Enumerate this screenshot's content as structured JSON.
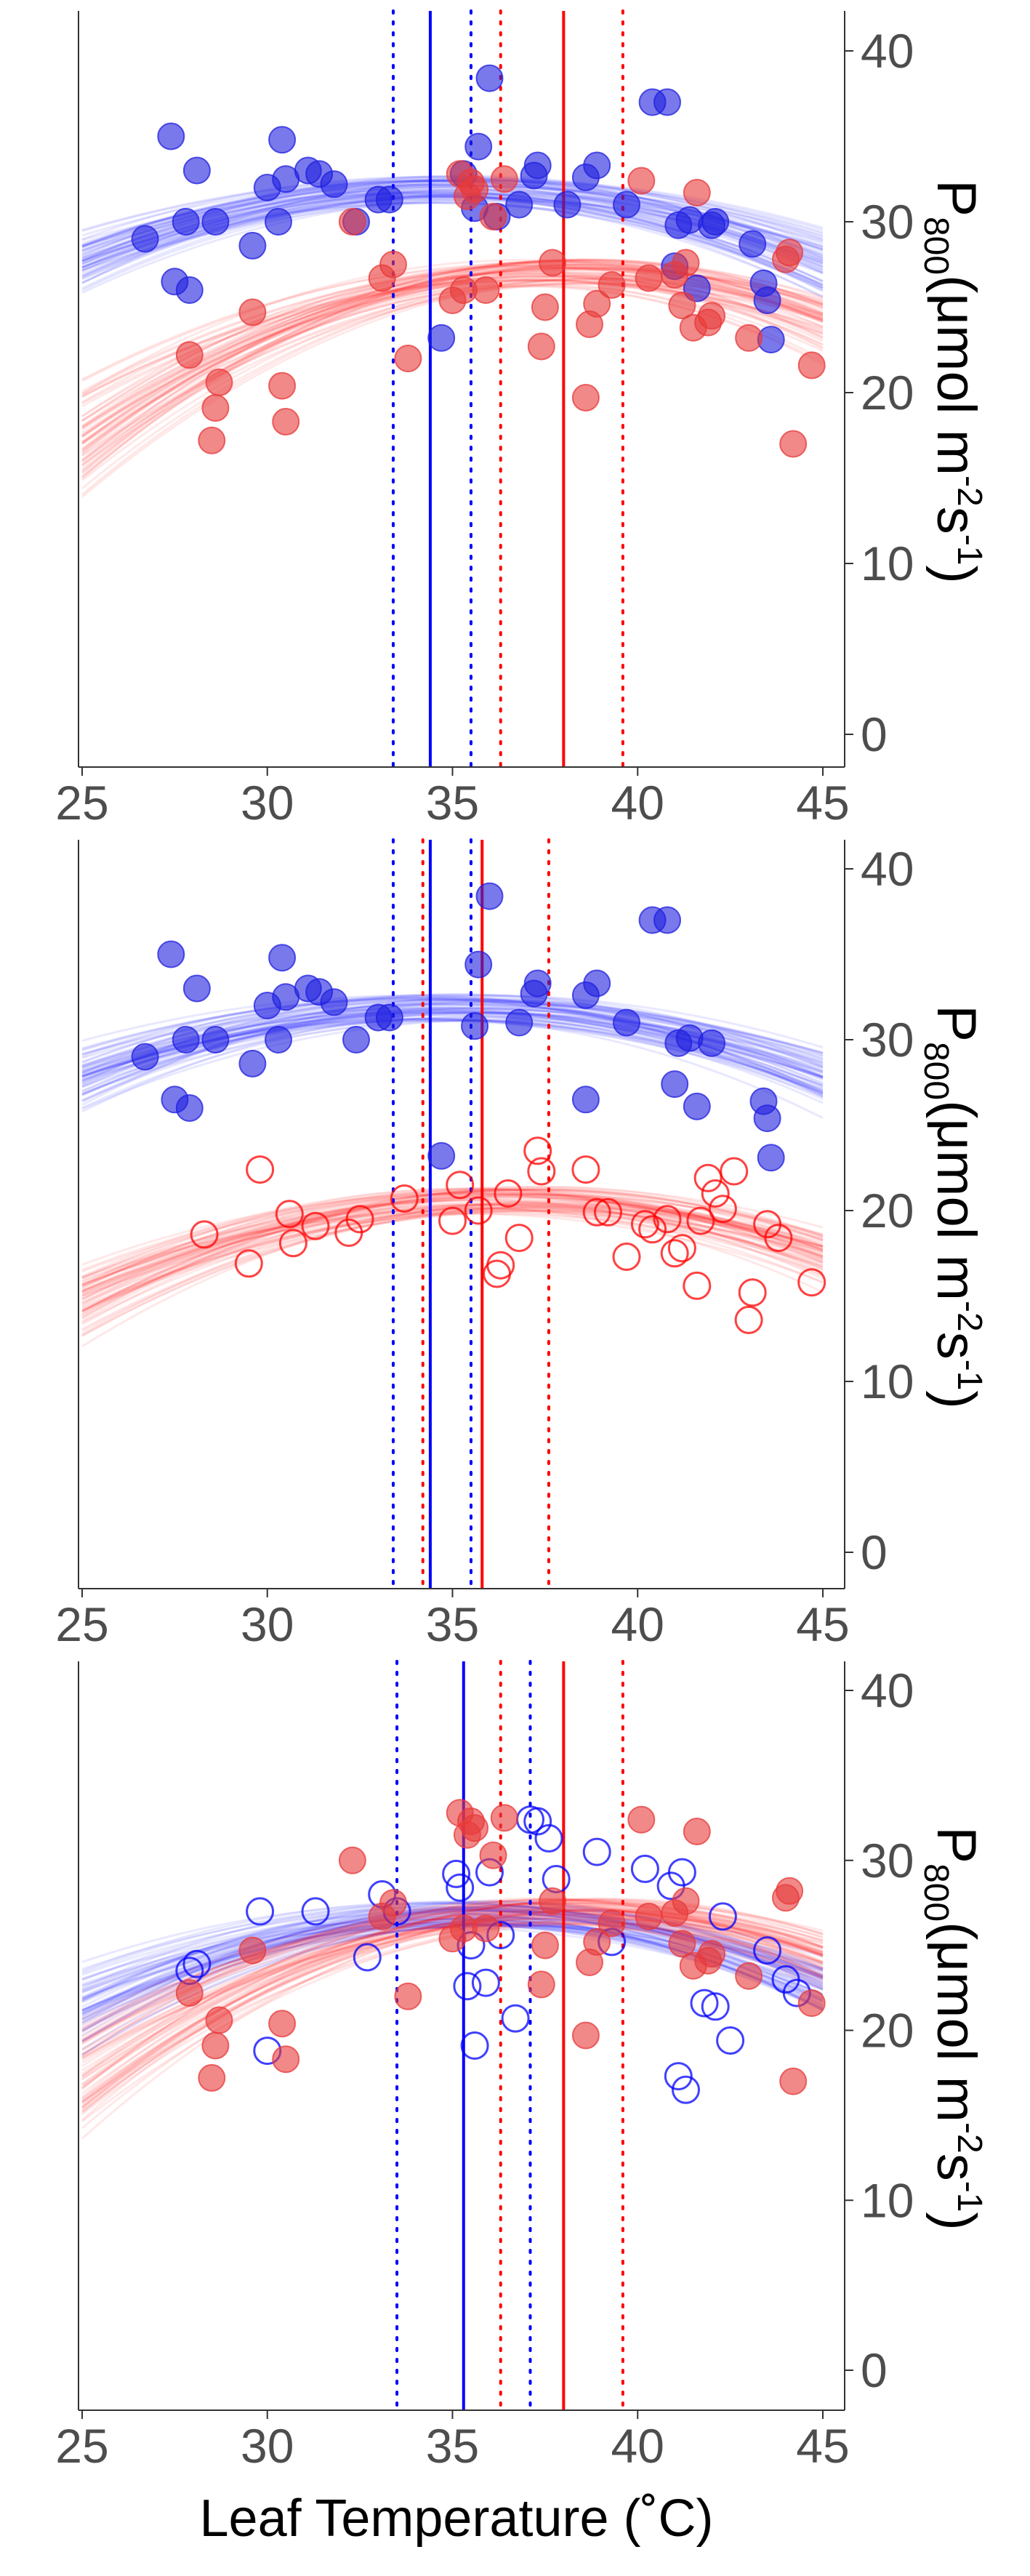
{
  "colors": {
    "blue": "#0000ff",
    "red": "#ff0000",
    "blue_fill": "#1f1fe0",
    "red_fill": "#e83a3a"
  },
  "shared": {
    "xlabel": "Leaf Temperature (˚C)",
    "ylabel": {
      "main": "P",
      "sub": "800",
      "rest1": "(μmol m",
      "sup1": "-2",
      "rest2": "s",
      "sup2": "-1",
      "rest3": ")"
    }
  },
  "chart_data": [
    {
      "type": "scatter",
      "panel": "top",
      "xlim": [
        25,
        46
      ],
      "ylim": [
        -2,
        42
      ],
      "xticks": [
        25,
        30,
        35,
        40,
        45
      ],
      "yticks": [
        0,
        10,
        20,
        30,
        40
      ],
      "grid": false,
      "series": [
        {
          "color": "blue",
          "marker": "filled",
          "curve": {
            "a": 31.9,
            "b": 35.0,
            "c": -0.042
          },
          "vline": {
            "x": 34.4,
            "ci": [
              33.4,
              35.5
            ]
          },
          "points": [
            [
              26.7,
              29
            ],
            [
              27.4,
              35
            ],
            [
              27.5,
              26.5
            ],
            [
              27.8,
              30
            ],
            [
              27.9,
              26
            ],
            [
              28.1,
              33
            ],
            [
              28.6,
              30
            ],
            [
              29.6,
              28.6
            ],
            [
              30.0,
              32
            ],
            [
              30.3,
              30
            ],
            [
              30.4,
              34.8
            ],
            [
              30.5,
              32.5
            ],
            [
              31.1,
              33
            ],
            [
              31.4,
              32.8
            ],
            [
              31.8,
              32.2
            ],
            [
              32.4,
              30
            ],
            [
              33.0,
              31.3
            ],
            [
              33.3,
              31.3
            ],
            [
              34.7,
              23.2
            ],
            [
              35.3,
              32.8
            ],
            [
              35.6,
              30.8
            ],
            [
              35.7,
              34.4
            ],
            [
              36.0,
              38.4
            ],
            [
              36.2,
              30.3
            ],
            [
              36.8,
              31
            ],
            [
              37.2,
              32.7
            ],
            [
              37.3,
              33.3
            ],
            [
              38.1,
              31
            ],
            [
              38.6,
              32.6
            ],
            [
              38.9,
              33.3
            ],
            [
              39.7,
              31
            ],
            [
              40.4,
              37
            ],
            [
              40.8,
              37
            ],
            [
              41.0,
              27.4
            ],
            [
              41.1,
              29.8
            ],
            [
              41.4,
              30.1
            ],
            [
              41.6,
              26.1
            ],
            [
              42.0,
              29.8
            ],
            [
              42.1,
              30
            ],
            [
              43.1,
              28.7
            ],
            [
              43.4,
              26.4
            ],
            [
              43.5,
              25.4
            ],
            [
              43.6,
              23.1
            ]
          ]
        },
        {
          "color": "red",
          "marker": "filled",
          "curve": {
            "a": 27.0,
            "b": 38.0,
            "c": -0.058
          },
          "vline": {
            "x": 38.0,
            "ci": [
              36.3,
              39.6
            ]
          },
          "points": [
            [
              27.9,
              22.2
            ],
            [
              28.5,
              17.2
            ],
            [
              28.6,
              19.1
            ],
            [
              28.7,
              20.6
            ],
            [
              29.6,
              24.7
            ],
            [
              30.4,
              20.4
            ],
            [
              30.5,
              18.3
            ],
            [
              32.3,
              30
            ],
            [
              33.1,
              26.7
            ],
            [
              33.4,
              27.5
            ],
            [
              33.8,
              22
            ],
            [
              35.0,
              25.4
            ],
            [
              35.2,
              32.8
            ],
            [
              35.3,
              26
            ],
            [
              35.4,
              31.5
            ],
            [
              35.5,
              32.3
            ],
            [
              35.6,
              31.9
            ],
            [
              35.9,
              26
            ],
            [
              36.1,
              30.3
            ],
            [
              36.4,
              32.5
            ],
            [
              37.4,
              22.7
            ],
            [
              37.5,
              25
            ],
            [
              37.7,
              27.6
            ],
            [
              38.6,
              19.7
            ],
            [
              38.7,
              24
            ],
            [
              38.9,
              25.2
            ],
            [
              39.3,
              26.3
            ],
            [
              40.1,
              32.4
            ],
            [
              40.3,
              26.7
            ],
            [
              41.0,
              26.9
            ],
            [
              41.2,
              25.1
            ],
            [
              41.3,
              27.6
            ],
            [
              41.5,
              23.8
            ],
            [
              41.6,
              31.7
            ],
            [
              41.9,
              24.1
            ],
            [
              42.0,
              24.5
            ],
            [
              43.0,
              23.2
            ],
            [
              44.0,
              27.8
            ],
            [
              44.1,
              28.2
            ],
            [
              44.2,
              17
            ],
            [
              44.7,
              21.6
            ]
          ]
        }
      ]
    },
    {
      "type": "scatter",
      "panel": "middle",
      "xlim": [
        25,
        46
      ],
      "ylim": [
        -2,
        42
      ],
      "xticks": [
        25,
        30,
        35,
        40,
        45
      ],
      "yticks": [
        0,
        10,
        20,
        30,
        40
      ],
      "grid": false,
      "series": [
        {
          "color": "blue",
          "marker": "filled",
          "curve": {
            "a": 31.9,
            "b": 35.0,
            "c": -0.042
          },
          "vline": {
            "x": 34.4,
            "ci": [
              33.4,
              35.5
            ]
          },
          "points": [
            [
              26.7,
              29
            ],
            [
              27.4,
              35
            ],
            [
              27.5,
              26.5
            ],
            [
              27.8,
              30
            ],
            [
              27.9,
              26
            ],
            [
              28.1,
              33
            ],
            [
              28.6,
              30
            ],
            [
              29.6,
              28.6
            ],
            [
              30.0,
              32
            ],
            [
              30.3,
              30
            ],
            [
              30.4,
              34.8
            ],
            [
              30.5,
              32.5
            ],
            [
              31.1,
              33
            ],
            [
              31.4,
              32.8
            ],
            [
              31.8,
              32.2
            ],
            [
              32.4,
              30
            ],
            [
              33.0,
              31.3
            ],
            [
              33.3,
              31.3
            ],
            [
              34.7,
              23.2
            ],
            [
              35.6,
              30.8
            ],
            [
              35.7,
              34.4
            ],
            [
              36.0,
              38.4
            ],
            [
              36.8,
              31
            ],
            [
              37.2,
              32.7
            ],
            [
              37.3,
              33.3
            ],
            [
              38.6,
              26.5
            ],
            [
              38.6,
              32.6
            ],
            [
              38.9,
              33.3
            ],
            [
              39.7,
              31
            ],
            [
              40.4,
              37
            ],
            [
              40.8,
              37
            ],
            [
              41.0,
              27.4
            ],
            [
              41.1,
              29.8
            ],
            [
              41.4,
              30.1
            ],
            [
              41.6,
              26.1
            ],
            [
              42.0,
              29.8
            ],
            [
              43.4,
              26.4
            ],
            [
              43.5,
              25.4
            ],
            [
              43.6,
              23.1
            ]
          ]
        },
        {
          "color": "red",
          "marker": "open",
          "curve": {
            "a": 20.6,
            "b": 36.5,
            "c": -0.043
          },
          "vline": {
            "x": 35.8,
            "ci": [
              34.2,
              37.6
            ]
          },
          "points": [
            [
              28.3,
              18.6
            ],
            [
              29.5,
              16.9
            ],
            [
              29.8,
              22.4
            ],
            [
              30.6,
              19.8
            ],
            [
              30.7,
              18.1
            ],
            [
              31.3,
              19.1
            ],
            [
              32.2,
              18.7
            ],
            [
              32.5,
              19.5
            ],
            [
              33.7,
              20.7
            ],
            [
              35.0,
              19.4
            ],
            [
              35.2,
              21.5
            ],
            [
              35.7,
              20
            ],
            [
              36.2,
              16.3
            ],
            [
              36.3,
              16.8
            ],
            [
              36.5,
              21
            ],
            [
              36.8,
              18.4
            ],
            [
              37.3,
              23.5
            ],
            [
              37.4,
              22.3
            ],
            [
              38.6,
              22.4
            ],
            [
              38.9,
              19.9
            ],
            [
              39.2,
              19.9
            ],
            [
              39.7,
              17.3
            ],
            [
              40.2,
              19.2
            ],
            [
              40.4,
              18.9
            ],
            [
              40.8,
              19.5
            ],
            [
              41.0,
              17.5
            ],
            [
              41.2,
              17.8
            ],
            [
              41.6,
              15.6
            ],
            [
              41.7,
              19.4
            ],
            [
              41.9,
              21.9
            ],
            [
              42.1,
              21
            ],
            [
              42.3,
              20.1
            ],
            [
              42.6,
              22.3
            ],
            [
              43.0,
              13.6
            ],
            [
              43.1,
              15.2
            ],
            [
              43.5,
              19.2
            ],
            [
              43.8,
              18.4
            ],
            [
              44.7,
              15.8
            ]
          ]
        }
      ]
    },
    {
      "type": "scatter",
      "panel": "bottom",
      "xlim": [
        25,
        46
      ],
      "ylim": [
        -2,
        42
      ],
      "xticks": [
        25,
        30,
        35,
        40,
        45
      ],
      "yticks": [
        0,
        10,
        20,
        30,
        40
      ],
      "grid": false,
      "series": [
        {
          "color": "blue",
          "marker": "open",
          "curve": {
            "a": 26.9,
            "b": 35.6,
            "c": -0.05
          },
          "vline": {
            "x": 35.3,
            "ci": [
              33.5,
              37.1
            ]
          },
          "points": [
            [
              27.9,
              23.5
            ],
            [
              28.1,
              23.9
            ],
            [
              29.8,
              27
            ],
            [
              30.0,
              18.8
            ],
            [
              31.3,
              27
            ],
            [
              32.7,
              24.3
            ],
            [
              33.1,
              28
            ],
            [
              33.5,
              27
            ],
            [
              35.1,
              29.2
            ],
            [
              35.2,
              28.4
            ],
            [
              35.4,
              22.6
            ],
            [
              35.5,
              25
            ],
            [
              35.6,
              19.1
            ],
            [
              35.9,
              22.8
            ],
            [
              36.0,
              29.3
            ],
            [
              36.3,
              25.6
            ],
            [
              36.7,
              20.7
            ],
            [
              37.1,
              32.4
            ],
            [
              37.3,
              32.3
            ],
            [
              37.6,
              31.3
            ],
            [
              37.8,
              28.9
            ],
            [
              38.9,
              30.5
            ],
            [
              39.3,
              25.2
            ],
            [
              40.2,
              29.5
            ],
            [
              40.9,
              28.5
            ],
            [
              41.1,
              17.3
            ],
            [
              41.2,
              29.3
            ],
            [
              41.3,
              16.5
            ],
            [
              41.8,
              21.6
            ],
            [
              42.1,
              21.4
            ],
            [
              42.3,
              26.7
            ],
            [
              42.5,
              19.4
            ],
            [
              43.5,
              24.7
            ],
            [
              44.0,
              23
            ],
            [
              44.3,
              22.2
            ]
          ]
        },
        {
          "color": "red",
          "marker": "filled",
          "curve": {
            "a": 27.0,
            "b": 38.0,
            "c": -0.058
          },
          "vline": {
            "x": 38.0,
            "ci": [
              36.3,
              39.6
            ]
          },
          "points": [
            [
              27.9,
              22.2
            ],
            [
              28.5,
              17.2
            ],
            [
              28.6,
              19.1
            ],
            [
              28.7,
              20.6
            ],
            [
              29.6,
              24.7
            ],
            [
              30.4,
              20.4
            ],
            [
              30.5,
              18.3
            ],
            [
              32.3,
              30
            ],
            [
              33.1,
              26.7
            ],
            [
              33.4,
              27.5
            ],
            [
              33.8,
              22
            ],
            [
              35.0,
              25.4
            ],
            [
              35.2,
              32.8
            ],
            [
              35.3,
              26
            ],
            [
              35.4,
              31.5
            ],
            [
              35.5,
              32.3
            ],
            [
              35.6,
              31.9
            ],
            [
              35.9,
              26
            ],
            [
              36.1,
              30.3
            ],
            [
              36.4,
              32.5
            ],
            [
              37.4,
              22.7
            ],
            [
              37.5,
              25
            ],
            [
              37.7,
              27.6
            ],
            [
              38.6,
              19.7
            ],
            [
              38.7,
              24
            ],
            [
              38.9,
              25.2
            ],
            [
              39.3,
              26.3
            ],
            [
              40.1,
              32.4
            ],
            [
              40.3,
              26.7
            ],
            [
              41.0,
              26.9
            ],
            [
              41.2,
              25.1
            ],
            [
              41.3,
              27.6
            ],
            [
              41.5,
              23.8
            ],
            [
              41.6,
              31.7
            ],
            [
              41.9,
              24.1
            ],
            [
              42.0,
              24.5
            ],
            [
              43.0,
              23.2
            ],
            [
              44.0,
              27.8
            ],
            [
              44.1,
              28.2
            ],
            [
              44.2,
              17
            ],
            [
              44.7,
              21.6
            ]
          ]
        }
      ]
    }
  ]
}
